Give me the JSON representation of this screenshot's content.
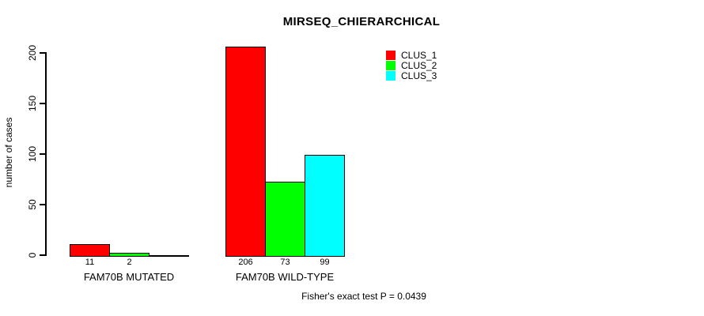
{
  "chart_data": {
    "type": "bar",
    "title": "MIRSEQ_CHIERARCHICAL",
    "ylabel": "number of cases",
    "xlabel": "",
    "ylim": [
      0,
      200
    ],
    "yticks": [
      0,
      50,
      100,
      150,
      200
    ],
    "categories": [
      "FAM70B MUTATED",
      "FAM70B WILD-TYPE"
    ],
    "series": [
      {
        "name": "CLUS_1",
        "color": "#ff0000",
        "values": [
          11,
          206
        ]
      },
      {
        "name": "CLUS_2",
        "color": "#00ff00",
        "values": [
          2,
          73
        ]
      },
      {
        "name": "CLUS_3",
        "color": "#00ffff",
        "values": [
          0,
          99
        ]
      }
    ],
    "bar_labels": [
      [
        "11",
        "2",
        ""
      ],
      [
        "206",
        "73",
        "99"
      ]
    ],
    "legend_position": "top-right",
    "grid": false,
    "annotation": "Fisher's exact test P = 0.0439",
    "axis_color": "#000000",
    "background_color": "#ffffff"
  }
}
